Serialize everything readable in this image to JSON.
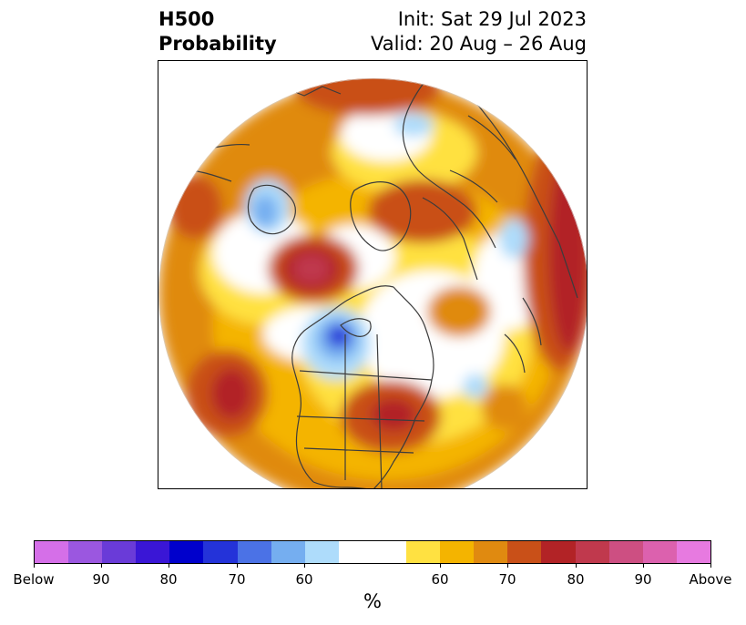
{
  "title": {
    "variable": "H500",
    "kind": "Probability",
    "init": "Init: Sat 29 Jul 2023",
    "valid": "Valid: 20 Aug – 26 Aug"
  },
  "colorbar": {
    "unit": "%",
    "colors": [
      "#d56fe8",
      "#9b57e0",
      "#6a3bd8",
      "#3a16d6",
      "#0000cc",
      "#2433d9",
      "#4b72e6",
      "#75aef0",
      "#aedcfb",
      "#ffffff",
      "#ffffff",
      "#ffe141",
      "#f4b400",
      "#e08a10",
      "#c95018",
      "#b22326",
      "#c0394d",
      "#cd4f82",
      "#dc61ae",
      "#e77ae0"
    ],
    "tick_labels": [
      "Below",
      "90",
      "80",
      "70",
      "60",
      "60",
      "70",
      "80",
      "90",
      "Above"
    ]
  },
  "map": {
    "projection": "north-polar-stereographic",
    "features": [
      "coastlines",
      "country-borders",
      "us-state-borders"
    ]
  }
}
